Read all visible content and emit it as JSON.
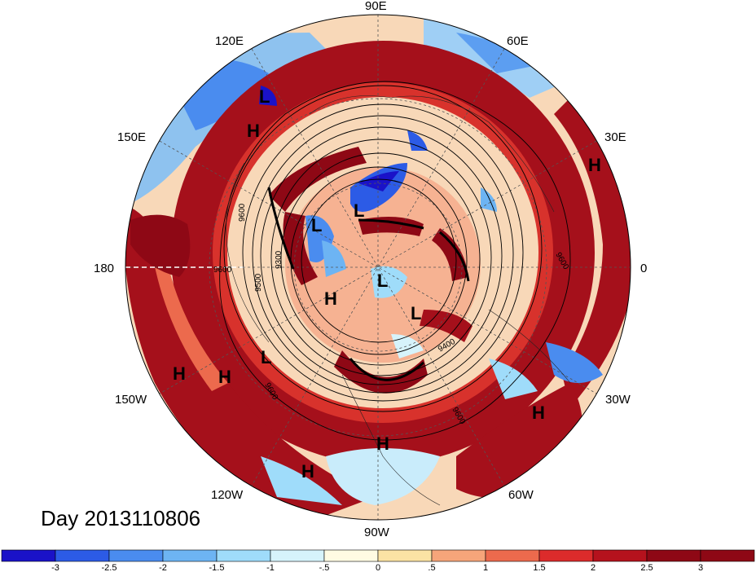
{
  "map": {
    "day_label": "Day 2013110806",
    "longitude_labels": [
      "90E",
      "60E",
      "120E",
      "150E",
      "30E",
      "180",
      "0",
      "150W",
      "30W",
      "120W",
      "60W",
      "90W"
    ],
    "highs_label": "H",
    "lows_label": "L",
    "contour_labels": [
      "9600",
      "9300",
      "9500",
      "9600",
      "9400",
      "9600",
      "9600",
      "9600",
      "9600"
    ]
  },
  "colorbar": {
    "colors": [
      "#1a12c8",
      "#2c5be6",
      "#4a8cef",
      "#6db4f3",
      "#9fdcfa",
      "#d6f3fb",
      "#fffbe3",
      "#fbe3a4",
      "#f6a57a",
      "#ec6a4d",
      "#dc2b2b",
      "#b5121d",
      "#8e0815"
    ],
    "labels": [
      "-3",
      "-2.5",
      "-2",
      "-1.5",
      "-1",
      "-.5",
      "0",
      ".5",
      "1",
      "1.5",
      "2",
      "2.5",
      "3"
    ]
  }
}
